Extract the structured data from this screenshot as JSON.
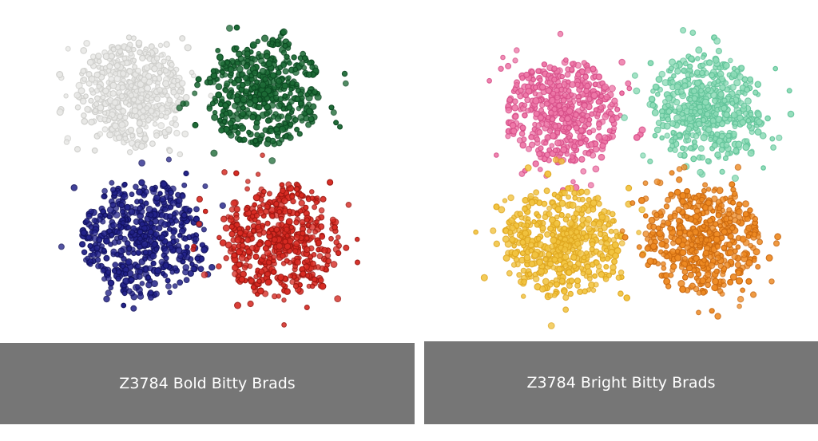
{
  "captions": {
    "left": "Z3784 Bold Bitty Brads",
    "right": "Z3784 Bright Bitty Brads"
  }
}
